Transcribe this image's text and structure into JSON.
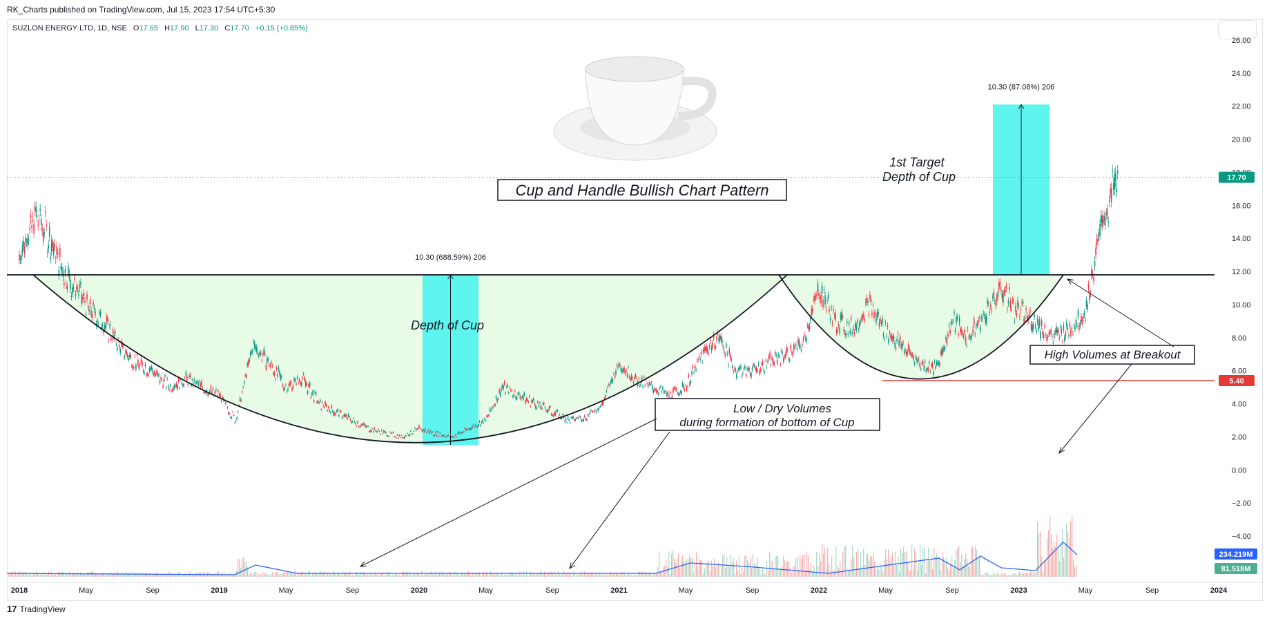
{
  "header": {
    "published": "RK_Charts published on TradingView.com, Jul 15, 2023 17:54 UTC+5:30"
  },
  "legend": {
    "symbol": "SUZLON ENERGY LTD, 1D, NSE",
    "open_label": "O",
    "open": "17.65",
    "high_label": "H",
    "high": "17.90",
    "low_label": "L",
    "low": "17.30",
    "close_label": "C",
    "close": "17.70",
    "change": "+0.15 (+0.85%)"
  },
  "footer": {
    "brand": "TradingView"
  },
  "colors": {
    "up": "#089981",
    "down": "#f23645",
    "cup_fill": "#e8fbe6",
    "measure_fill": "#5ef5ee",
    "volume_ma": "#2962ff",
    "support": "#e53935"
  },
  "chart_data": {
    "type": "candlestick",
    "title": "Cup and Handle Bullish Chart Pattern",
    "y_ticks": [
      "26.00",
      "24.00",
      "22.00",
      "20.00",
      "18.00",
      "16.00",
      "14.00",
      "12.00",
      "10.00",
      "8.00",
      "6.00",
      "4.00",
      "2.00",
      "0.00",
      "−2.00",
      "−4.00"
    ],
    "ylim": [
      -4,
      26
    ],
    "x_ticks": [
      {
        "label": "2018",
        "bold": true
      },
      {
        "label": "May",
        "bold": false
      },
      {
        "label": "Sep",
        "bold": false
      },
      {
        "label": "2019",
        "bold": true
      },
      {
        "label": "May",
        "bold": false
      },
      {
        "label": "Sep",
        "bold": false
      },
      {
        "label": "2020",
        "bold": true
      },
      {
        "label": "May",
        "bold": false
      },
      {
        "label": "Sep",
        "bold": false
      },
      {
        "label": "2021",
        "bold": true
      },
      {
        "label": "May",
        "bold": false
      },
      {
        "label": "Sep",
        "bold": false
      },
      {
        "label": "2022",
        "bold": true
      },
      {
        "label": "May",
        "bold": false
      },
      {
        "label": "Sep",
        "bold": false
      },
      {
        "label": "2023",
        "bold": true
      },
      {
        "label": "May",
        "bold": false
      },
      {
        "label": "Sep",
        "bold": false
      },
      {
        "label": "2024",
        "bold": true
      }
    ],
    "price_path": [
      [
        "2018-01",
        13.0
      ],
      [
        "2018-02",
        15.5
      ],
      [
        "2018-03",
        13.5
      ],
      [
        "2018-04",
        11.5
      ],
      [
        "2018-05",
        10.0
      ],
      [
        "2018-06",
        9.0
      ],
      [
        "2018-07",
        7.5
      ],
      [
        "2018-08",
        6.5
      ],
      [
        "2018-09",
        6.0
      ],
      [
        "2018-10",
        5.0
      ],
      [
        "2018-11",
        5.5
      ],
      [
        "2018-12",
        5.0
      ],
      [
        "2019-01",
        4.5
      ],
      [
        "2019-02",
        3.0
      ],
      [
        "2019-03",
        7.5
      ],
      [
        "2019-04",
        6.5
      ],
      [
        "2019-05",
        5.0
      ],
      [
        "2019-06",
        5.5
      ],
      [
        "2019-07",
        4.0
      ],
      [
        "2019-08",
        3.5
      ],
      [
        "2019-09",
        3.0
      ],
      [
        "2019-10",
        2.5
      ],
      [
        "2019-11",
        2.2
      ],
      [
        "2019-12",
        2.0
      ],
      [
        "2020-01",
        2.5
      ],
      [
        "2020-02",
        2.2
      ],
      [
        "2020-03",
        2.0
      ],
      [
        "2020-04",
        2.5
      ],
      [
        "2020-05",
        3.0
      ],
      [
        "2020-06",
        5.0
      ],
      [
        "2020-07",
        4.5
      ],
      [
        "2020-08",
        4.0
      ],
      [
        "2020-09",
        3.5
      ],
      [
        "2020-10",
        3.0
      ],
      [
        "2020-11",
        3.2
      ],
      [
        "2020-12",
        4.0
      ],
      [
        "2021-01",
        6.5
      ],
      [
        "2021-02",
        5.5
      ],
      [
        "2021-03",
        5.0
      ],
      [
        "2021-04",
        4.5
      ],
      [
        "2021-05",
        5.0
      ],
      [
        "2021-06",
        7.0
      ],
      [
        "2021-07",
        8.0
      ],
      [
        "2021-08",
        6.0
      ],
      [
        "2021-09",
        6.0
      ],
      [
        "2021-10",
        6.5
      ],
      [
        "2021-11",
        7.0
      ],
      [
        "2021-12",
        7.5
      ],
      [
        "2022-01",
        11.0
      ],
      [
        "2022-02",
        9.0
      ],
      [
        "2022-03",
        8.5
      ],
      [
        "2022-04",
        10.0
      ],
      [
        "2022-05",
        8.5
      ],
      [
        "2022-06",
        7.5
      ],
      [
        "2022-07",
        6.5
      ],
      [
        "2022-08",
        6.0
      ],
      [
        "2022-09",
        9.0
      ],
      [
        "2022-10",
        8.0
      ],
      [
        "2022-11",
        9.5
      ],
      [
        "2022-12",
        11.0
      ],
      [
        "2023-01",
        9.5
      ],
      [
        "2023-02",
        9.0
      ],
      [
        "2023-03",
        8.0
      ],
      [
        "2023-04",
        8.5
      ],
      [
        "2023-05",
        9.5
      ],
      [
        "2023-06",
        15.0
      ],
      [
        "2023-07",
        17.7
      ]
    ],
    "current_price": "17.70",
    "resistance": 11.8,
    "support": {
      "value": 5.4,
      "label": "5.40"
    },
    "volume_ma_label": "234.219M",
    "volume_label": "81.518M",
    "measurements": [
      {
        "label": "10.30 (688.59%) 206",
        "from": 1.5,
        "to": 11.8
      },
      {
        "label": "10.30 (87.08%) 206",
        "from": 11.8,
        "to": 22.1
      }
    ],
    "annotations": {
      "depth_of_cup": "Depth of Cup",
      "target_line1": "1st Target",
      "target_line2": "Depth of Cup",
      "low_volume_line1": "Low / Dry Volumes",
      "low_volume_line2": "during formation of bottom of Cup",
      "high_volume": "High Volumes at Breakout"
    }
  }
}
